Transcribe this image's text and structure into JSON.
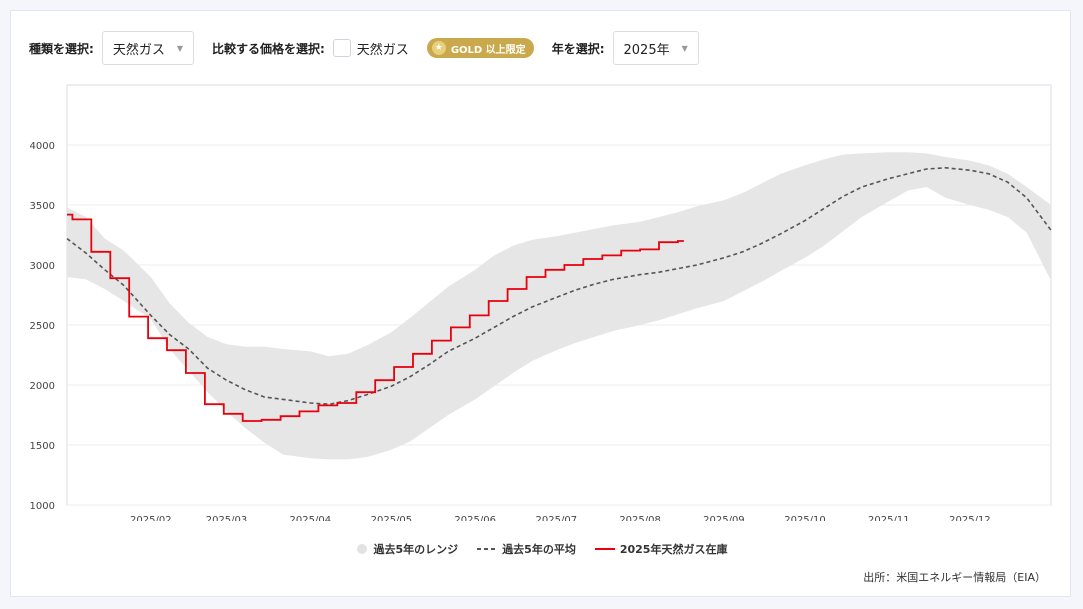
{
  "controls": {
    "type_label": "種類を選択:",
    "type_value": "天然ガス",
    "compare_label": "比較する価格を選択:",
    "compare_checkbox_label": "天然ガス",
    "gold_badge": "GOLD 以上限定",
    "year_label": "年を選択:",
    "year_value": "2025年"
  },
  "source": "出所：米国エネルギー情報局（EIA）",
  "chart_data": {
    "type": "line",
    "title": "",
    "xlabel": "",
    "ylabel": "",
    "x_domain": [
      "2025-01-01",
      "2025-12-31"
    ],
    "ylim": [
      1000,
      4500
    ],
    "yticks": [
      1000,
      1500,
      2000,
      2500,
      3000,
      3500,
      4000
    ],
    "xticks": [
      {
        "date": "2025-02-01",
        "label": "2025/02"
      },
      {
        "date": "2025-03-01",
        "label": "2025/03"
      },
      {
        "date": "2025-04-01",
        "label": "2025/04"
      },
      {
        "date": "2025-05-01",
        "label": "2025/05"
      },
      {
        "date": "2025-06-01",
        "label": "2025/06"
      },
      {
        "date": "2025-07-01",
        "label": "2025/07"
      },
      {
        "date": "2025-08-01",
        "label": "2025/08"
      },
      {
        "date": "2025-09-01",
        "label": "2025/09"
      },
      {
        "date": "2025-10-01",
        "label": "2025/10"
      },
      {
        "date": "2025-11-01",
        "label": "2025/11"
      },
      {
        "date": "2025-12-01",
        "label": "2025/12"
      }
    ],
    "grid": "horizontal",
    "legend_position": "bottom-center",
    "colors": {
      "range": "#e6e6e6",
      "average": "#555555",
      "current": "#e8000d"
    },
    "range": {
      "name": "過去5年のレンジ",
      "x": [
        "2025-01-01",
        "2025-01-08",
        "2025-01-15",
        "2025-01-22",
        "2025-02-01",
        "2025-02-08",
        "2025-02-15",
        "2025-02-22",
        "2025-03-01",
        "2025-03-08",
        "2025-03-15",
        "2025-03-22",
        "2025-04-01",
        "2025-04-08",
        "2025-04-15",
        "2025-04-22",
        "2025-05-01",
        "2025-05-08",
        "2025-05-15",
        "2025-05-22",
        "2025-06-01",
        "2025-06-08",
        "2025-06-15",
        "2025-06-22",
        "2025-07-01",
        "2025-07-08",
        "2025-07-15",
        "2025-07-22",
        "2025-08-01",
        "2025-08-08",
        "2025-08-15",
        "2025-08-22",
        "2025-09-01",
        "2025-09-08",
        "2025-09-15",
        "2025-09-22",
        "2025-10-01",
        "2025-10-08",
        "2025-10-15",
        "2025-10-22",
        "2025-11-01",
        "2025-11-08",
        "2025-11-15",
        "2025-11-22",
        "2025-12-01",
        "2025-12-08",
        "2025-12-15",
        "2025-12-22",
        "2025-12-31"
      ],
      "low": [
        2900,
        2880,
        2800,
        2700,
        2550,
        2300,
        2120,
        1940,
        1780,
        1640,
        1520,
        1420,
        1390,
        1380,
        1380,
        1400,
        1460,
        1530,
        1640,
        1750,
        1880,
        1990,
        2100,
        2200,
        2290,
        2350,
        2400,
        2450,
        2500,
        2540,
        2590,
        2640,
        2700,
        2780,
        2860,
        2950,
        3060,
        3160,
        3280,
        3400,
        3530,
        3620,
        3650,
        3560,
        3500,
        3460,
        3400,
        3270,
        2870
      ],
      "high": [
        3480,
        3400,
        3220,
        3120,
        2900,
        2680,
        2520,
        2400,
        2340,
        2320,
        2320,
        2300,
        2280,
        2240,
        2260,
        2330,
        2440,
        2560,
        2690,
        2820,
        2960,
        3080,
        3160,
        3210,
        3240,
        3270,
        3300,
        3330,
        3360,
        3400,
        3440,
        3490,
        3540,
        3600,
        3680,
        3760,
        3830,
        3880,
        3920,
        3930,
        3940,
        3940,
        3930,
        3900,
        3870,
        3830,
        3760,
        3650,
        3500
      ]
    },
    "average": {
      "name": "過去5年の平均",
      "x": [
        "2025-01-01",
        "2025-01-08",
        "2025-01-15",
        "2025-01-22",
        "2025-02-01",
        "2025-02-08",
        "2025-02-15",
        "2025-02-22",
        "2025-03-01",
        "2025-03-08",
        "2025-03-15",
        "2025-03-22",
        "2025-04-01",
        "2025-04-08",
        "2025-04-15",
        "2025-04-22",
        "2025-05-01",
        "2025-05-08",
        "2025-05-15",
        "2025-05-22",
        "2025-06-01",
        "2025-06-08",
        "2025-06-15",
        "2025-06-22",
        "2025-07-01",
        "2025-07-08",
        "2025-07-15",
        "2025-07-22",
        "2025-08-01",
        "2025-08-08",
        "2025-08-15",
        "2025-08-22",
        "2025-09-01",
        "2025-09-08",
        "2025-09-15",
        "2025-09-22",
        "2025-10-01",
        "2025-10-08",
        "2025-10-15",
        "2025-10-22",
        "2025-11-01",
        "2025-11-08",
        "2025-11-15",
        "2025-11-22",
        "2025-12-01",
        "2025-12-08",
        "2025-12-15",
        "2025-12-22",
        "2025-12-31"
      ],
      "values": [
        3220,
        3100,
        2960,
        2830,
        2580,
        2420,
        2300,
        2140,
        2040,
        1960,
        1900,
        1880,
        1850,
        1840,
        1870,
        1920,
        1990,
        2070,
        2170,
        2280,
        2390,
        2480,
        2570,
        2650,
        2730,
        2790,
        2840,
        2880,
        2920,
        2940,
        2970,
        3000,
        3060,
        3110,
        3180,
        3260,
        3370,
        3470,
        3570,
        3650,
        3720,
        3760,
        3800,
        3810,
        3790,
        3760,
        3690,
        3560,
        3290
      ]
    },
    "current": {
      "name": "2025年天然ガス在庫",
      "x": [
        "2025-01-01",
        "2025-01-03",
        "2025-01-10",
        "2025-01-17",
        "2025-01-24",
        "2025-01-31",
        "2025-02-07",
        "2025-02-14",
        "2025-02-21",
        "2025-02-28",
        "2025-03-07",
        "2025-03-14",
        "2025-03-21",
        "2025-03-28",
        "2025-04-04",
        "2025-04-11",
        "2025-04-18",
        "2025-04-25",
        "2025-05-02",
        "2025-05-09",
        "2025-05-16",
        "2025-05-23",
        "2025-05-30",
        "2025-06-06",
        "2025-06-13",
        "2025-06-20",
        "2025-06-27",
        "2025-07-04",
        "2025-07-11",
        "2025-07-18",
        "2025-07-25",
        "2025-08-01",
        "2025-08-08",
        "2025-08-15"
      ],
      "values": [
        3420,
        3380,
        3110,
        2890,
        2570,
        2390,
        2290,
        2100,
        1840,
        1760,
        1700,
        1710,
        1740,
        1780,
        1830,
        1850,
        1940,
        2040,
        2150,
        2260,
        2370,
        2480,
        2580,
        2700,
        2800,
        2900,
        2960,
        3000,
        3050,
        3080,
        3120,
        3130,
        3190,
        3200
      ]
    }
  }
}
